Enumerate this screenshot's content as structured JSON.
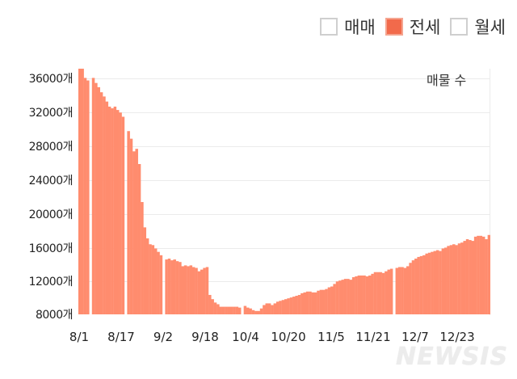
{
  "legend": {
    "items": [
      {
        "label": "매매",
        "active": false
      },
      {
        "label": "전세",
        "active": true
      },
      {
        "label": "월세",
        "active": false
      }
    ]
  },
  "unit_label": "매물 수",
  "colors": {
    "bar": "#ff8c6e",
    "legend_active": "#f26a4b",
    "grid": "#ebebeb"
  },
  "y_axis": {
    "ticks": [
      "36000개",
      "32000개",
      "28000개",
      "24000개",
      "20000개",
      "16000개",
      "12000개",
      "8000개"
    ]
  },
  "x_axis": {
    "ticks": [
      "8/1",
      "8/17",
      "9/2",
      "9/18",
      "10/4",
      "10/20",
      "11/5",
      "11/21",
      "12/7",
      "12/23"
    ]
  },
  "watermark": "NEWSIS",
  "chart_data": {
    "type": "bar",
    "title": "",
    "xlabel": "",
    "ylabel": "매물 수",
    "legend": [
      "매매",
      "전세",
      "월세"
    ],
    "active_series": "전세",
    "ylim": [
      8000,
      37500
    ],
    "y_ticks": [
      8000,
      12000,
      16000,
      20000,
      24000,
      28000,
      32000,
      36000
    ],
    "x_tick_labels": [
      "8/1",
      "8/17",
      "9/2",
      "9/18",
      "10/4",
      "10/20",
      "11/5",
      "11/21",
      "12/7",
      "12/23"
    ],
    "grid": true,
    "start_date": "8/1",
    "end_date": "12/31",
    "series": [
      {
        "name": "전세",
        "values": [
          37200,
          37200,
          36000,
          35700,
          0,
          36000,
          35400,
          34900,
          34300,
          33800,
          33200,
          32600,
          32400,
          32600,
          32200,
          31900,
          31400,
          0,
          29700,
          28800,
          27300,
          27600,
          25800,
          21300,
          18300,
          17000,
          16300,
          16200,
          15800,
          15400,
          15000,
          0,
          14500,
          14600,
          14400,
          14500,
          14300,
          14200,
          13700,
          13800,
          13700,
          13800,
          13600,
          13500,
          13100,
          13300,
          13500,
          13600,
          10300,
          9800,
          9400,
          9200,
          8900,
          8900,
          8900,
          8900,
          8900,
          8900,
          8900,
          8800,
          0,
          9000,
          8800,
          8700,
          8500,
          8400,
          8400,
          8700,
          9100,
          9300,
          9300,
          9100,
          9300,
          9500,
          9600,
          9700,
          9800,
          9900,
          10000,
          10100,
          10200,
          10300,
          10500,
          10600,
          10700,
          10700,
          10600,
          10600,
          10800,
          10900,
          10900,
          11000,
          11200,
          11300,
          11600,
          11900,
          12000,
          12100,
          12200,
          12200,
          12100,
          12400,
          12500,
          12600,
          12600,
          12600,
          12500,
          12600,
          12800,
          13000,
          13000,
          13000,
          12900,
          13100,
          13300,
          13400,
          0,
          13500,
          13600,
          13600,
          13500,
          13700,
          14100,
          14400,
          14600,
          14800,
          14900,
          15000,
          15200,
          15300,
          15400,
          15500,
          15600,
          15500,
          15800,
          15900,
          16100,
          16200,
          16300,
          16200,
          16400,
          16500,
          16700,
          16900,
          16800,
          16700,
          17200,
          17300,
          17300,
          17200,
          16900,
          17400
        ]
      }
    ]
  }
}
